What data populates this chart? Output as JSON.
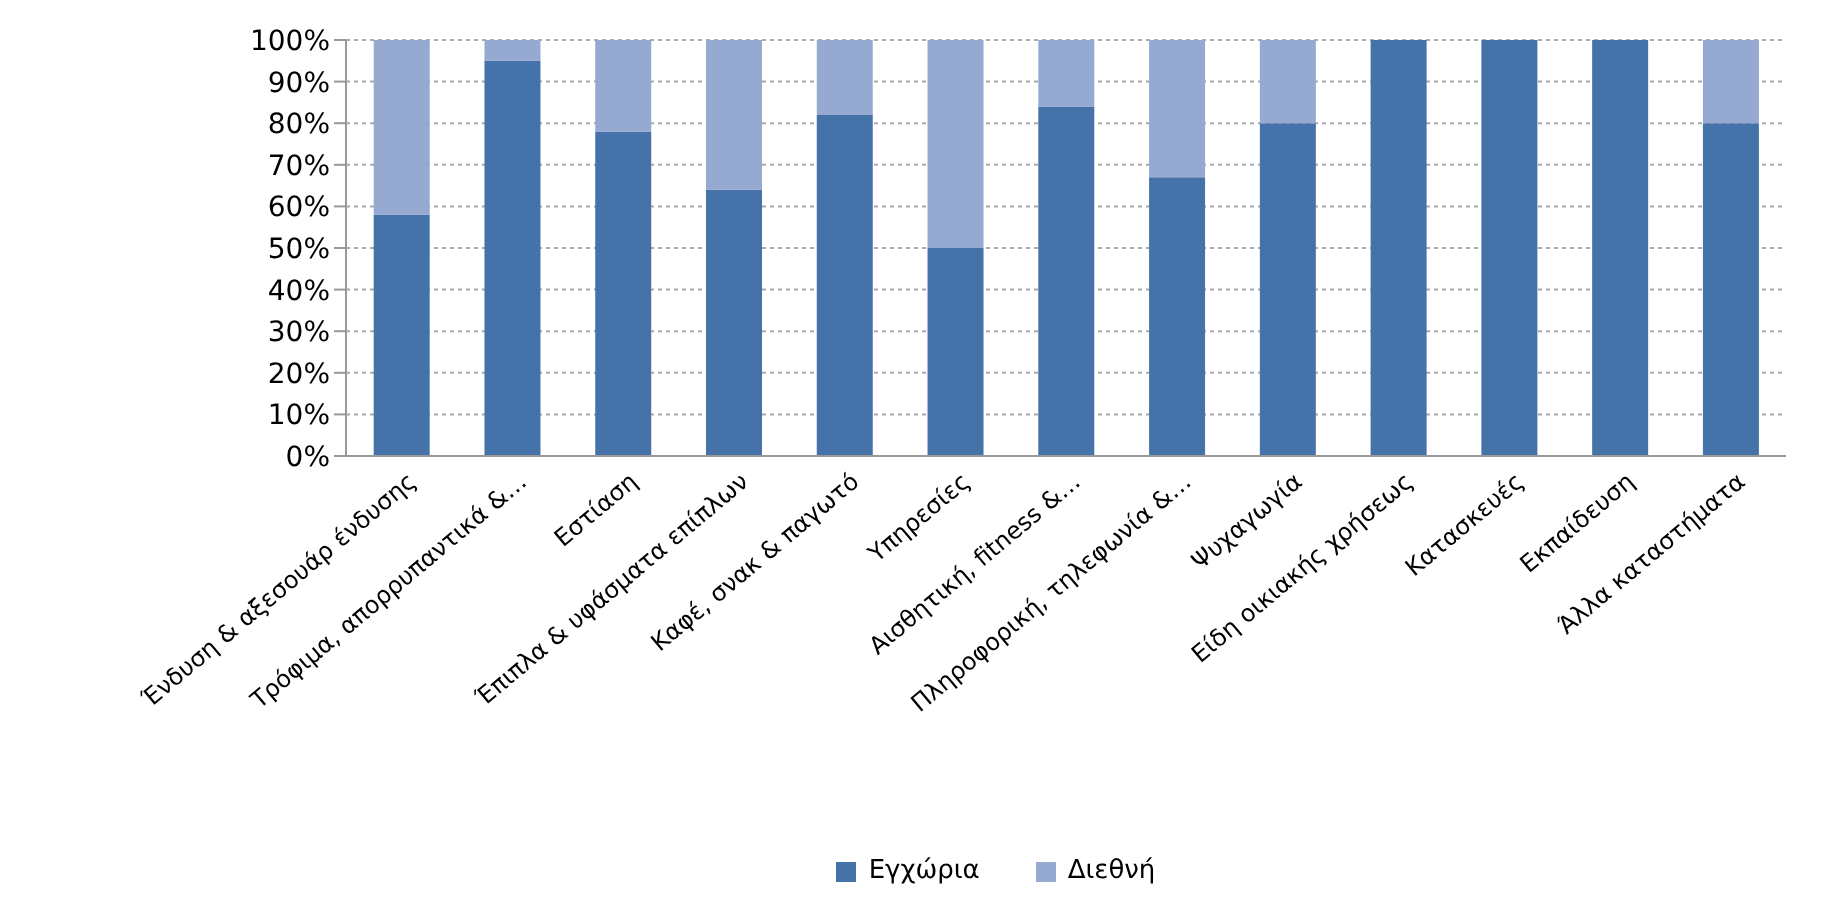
{
  "chart_data": {
    "type": "bar",
    "stacked": true,
    "categories": [
      "Ένδυση & αξεσουάρ ένδυσης",
      "Τρόφιμα, απορρυπαντικά &…",
      "Εστίαση",
      "Έπιπλα & υφάσματα επίπλων",
      "Καφέ, σνακ & παγωτό",
      "Υπηρεσίες",
      "Αισθητική, fitness &…",
      "Πληροφορική, τηλεφωνία &…",
      "Ψυχαγωγία",
      "Είδη οικιακής χρήσεως",
      "Κατασκευές",
      "Εκπαίδευση",
      "Άλλα καταστήματα"
    ],
    "series": [
      {
        "name": "Εγχώρια",
        "color": "#4672aa",
        "values": [
          58,
          95,
          78,
          64,
          82,
          50,
          84,
          67,
          80,
          100,
          100,
          100,
          80
        ]
      },
      {
        "name": "Διεθνή",
        "color": "#95a9d1",
        "values": [
          42,
          5,
          22,
          36,
          18,
          50,
          16,
          33,
          20,
          0,
          0,
          0,
          20
        ]
      }
    ],
    "ylim": [
      0,
      100
    ],
    "yticks": [
      {
        "value": 0,
        "label": "0%"
      },
      {
        "value": 10,
        "label": "10%"
      },
      {
        "value": 20,
        "label": "20%"
      },
      {
        "value": 30,
        "label": "30%"
      },
      {
        "value": 40,
        "label": "40%"
      },
      {
        "value": 50,
        "label": "50%"
      },
      {
        "value": 60,
        "label": "60%"
      },
      {
        "value": 70,
        "label": "70%"
      },
      {
        "value": 80,
        "label": "80%"
      },
      {
        "value": 90,
        "label": "90%"
      },
      {
        "value": 100,
        "label": "100%"
      }
    ],
    "grid": "y",
    "legend": "bottom"
  }
}
